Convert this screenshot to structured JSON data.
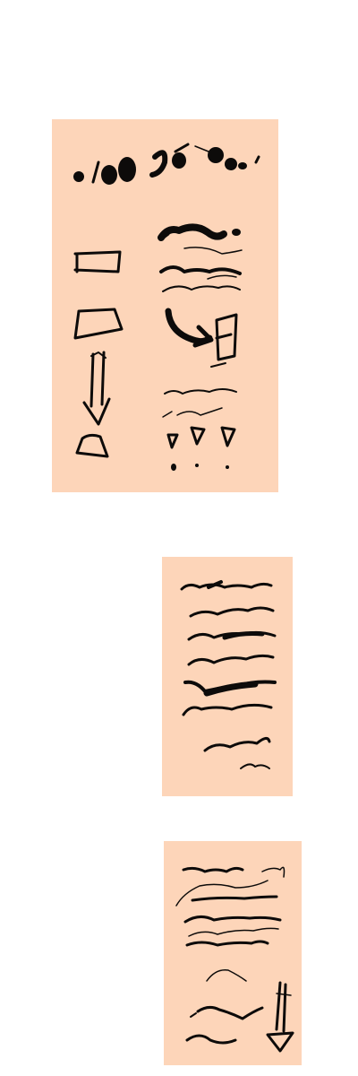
{
  "canvas": {
    "background": "#ffffff"
  },
  "palette": {
    "panel_fill": "#fdd5b9",
    "ink": "#0d0b0a"
  },
  "panels": [
    {
      "id": "panel-1",
      "content": "brush-stroke-samples-large"
    },
    {
      "id": "panel-2",
      "content": "wavy-line-samples"
    },
    {
      "id": "panel-3",
      "content": "wavy-line-and-arrow-samples"
    }
  ]
}
